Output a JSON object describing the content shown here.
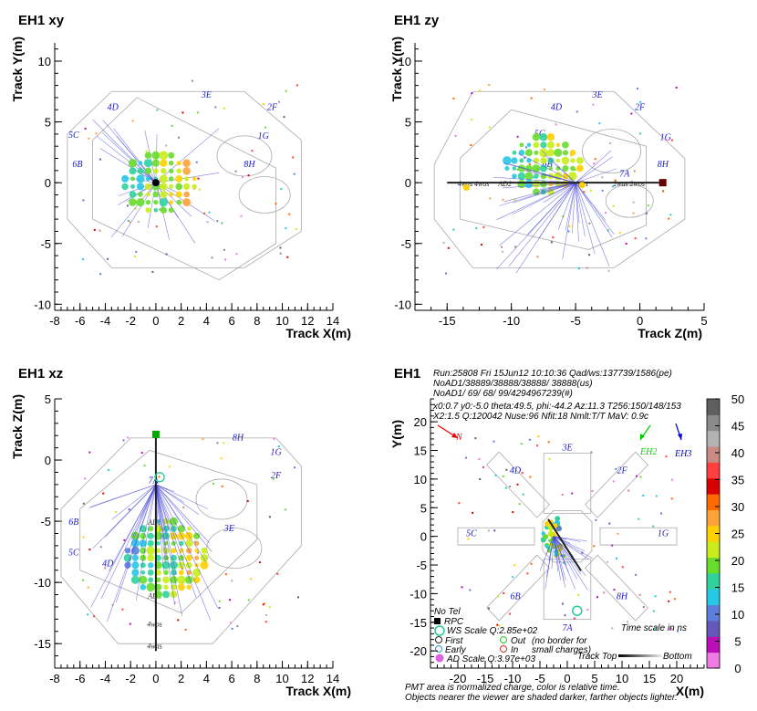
{
  "chart_data": [
    {
      "type": "scatter",
      "panel": "xy",
      "title": "EH1 xy",
      "xlabel": "Track X(m)",
      "ylabel": "Track Y(m)",
      "xlim": [
        -8,
        14
      ],
      "ylim": [
        -10.5,
        11.5
      ],
      "xticks": [
        -8,
        -6,
        -4,
        -2,
        0,
        2,
        4,
        6,
        8,
        10,
        12,
        14
      ],
      "yticks": [
        -10,
        -5,
        0,
        5,
        10
      ],
      "labels": [
        {
          "t": "3E",
          "x": 4,
          "y": 7
        },
        {
          "t": "4D",
          "x": -3.4,
          "y": 6
        },
        {
          "t": "2F",
          "x": 9.2,
          "y": 6
        },
        {
          "t": "5C",
          "x": -6.5,
          "y": 3.7
        },
        {
          "t": "1G",
          "x": 8.5,
          "y": 3.6
        },
        {
          "t": "6B",
          "x": -6.2,
          "y": 1.3
        },
        {
          "t": "8H",
          "x": 7.4,
          "y": 1.3
        }
      ]
    },
    {
      "type": "scatter",
      "panel": "zy",
      "title": "EH1 zy",
      "xlabel": "Track Z(m)",
      "ylabel": "Track Y(m)",
      "xlim": [
        -17.5,
        5
      ],
      "ylim": [
        -10.5,
        11.5
      ],
      "xticks": [
        -15,
        -10,
        -5,
        0,
        5
      ],
      "yticks": [
        -10,
        -5,
        0,
        5,
        10
      ],
      "labels": [
        {
          "t": "3E",
          "x": -3.3,
          "y": 7
        },
        {
          "t": "4D",
          "x": -6.5,
          "y": 6
        },
        {
          "t": "2F",
          "x": 0,
          "y": 6
        },
        {
          "t": "5C",
          "x": -7.8,
          "y": 3.8
        },
        {
          "t": "1G",
          "x": 2,
          "y": 3.5
        },
        {
          "t": "6B",
          "x": -7.2,
          "y": 1.3
        },
        {
          "t": "8H",
          "x": 1.8,
          "y": 1.3
        },
        {
          "t": "7A",
          "x": -1.2,
          "y": 0.5
        },
        {
          "t": "AD2",
          "x": -10.5,
          "y": -0.3
        },
        {
          "t": "AD1",
          "x": -4.5,
          "y": -0.3
        },
        {
          "t": "4was",
          "x": -13.6,
          "y": -0.3
        },
        {
          "t": "4wos",
          "x": -12.3,
          "y": -0.3
        },
        {
          "t": "2was",
          "x": -1.5,
          "y": -0.3
        },
        {
          "t": "2wos",
          "x": -0.2,
          "y": -0.3
        }
      ]
    },
    {
      "type": "scatter",
      "panel": "xz",
      "title": "EH1 xz",
      "xlabel": "Track X(m)",
      "ylabel": "Track Z(m)",
      "xlim": [
        -8,
        14
      ],
      "ylim": [
        -17,
        5
      ],
      "xticks": [
        -8,
        -6,
        -4,
        -2,
        0,
        2,
        4,
        6,
        8,
        10,
        12,
        14
      ],
      "yticks": [
        -15,
        -10,
        -5,
        0,
        5
      ],
      "labels": [
        {
          "t": "8H",
          "x": 6.5,
          "y": 1.6
        },
        {
          "t": "1G",
          "x": 9.5,
          "y": 0.4
        },
        {
          "t": "2F",
          "x": 9.5,
          "y": -1.5
        },
        {
          "t": "6B",
          "x": -6.5,
          "y": -5.3
        },
        {
          "t": "3E",
          "x": 5.8,
          "y": -5.8
        },
        {
          "t": "5C",
          "x": -6.5,
          "y": -7.8
        },
        {
          "t": "4D",
          "x": -3.8,
          "y": -8.7
        },
        {
          "t": "7A",
          "x": -0.2,
          "y": -1.9
        },
        {
          "t": "AD1",
          "x": -0.1,
          "y": -5.3
        },
        {
          "t": "AD2",
          "x": -0.1,
          "y": -11.3
        },
        {
          "t": "4wos",
          "x": -0.1,
          "y": -13.6
        },
        {
          "t": "4was",
          "x": -0.1,
          "y": -15.4
        }
      ]
    },
    {
      "type": "scatter",
      "panel": "unrolled",
      "title": "EH1",
      "xlabel": "X(m)",
      "ylabel": "Y(m)",
      "xlim": [
        -25,
        25
      ],
      "ylim": [
        -23,
        24
      ],
      "xticks": [
        -20,
        -15,
        -10,
        -5,
        0,
        5,
        10,
        15,
        20
      ],
      "yticks": [
        -20,
        -15,
        -10,
        -5,
        0,
        5,
        10,
        15,
        20
      ],
      "labels": [
        {
          "t": "3E",
          "x": 0,
          "y": 15
        },
        {
          "t": "4D",
          "x": -9.5,
          "y": 11
        },
        {
          "t": "2F",
          "x": 10,
          "y": 11
        },
        {
          "t": "5C",
          "x": -17.5,
          "y": 0
        },
        {
          "t": "1G",
          "x": 17.5,
          "y": 0
        },
        {
          "t": "6B",
          "x": -9.5,
          "y": -11
        },
        {
          "t": "8H",
          "x": 10,
          "y": -11
        },
        {
          "t": "7A",
          "x": 0,
          "y": -16.5
        }
      ],
      "colorbar": {
        "min": 0,
        "max": 50,
        "ticks": [
          0,
          5,
          10,
          15,
          20,
          25,
          30,
          35,
          40,
          45,
          50
        ],
        "label": "Time scale in ns"
      }
    }
  ],
  "info": {
    "line1": "Run:25808 Fri 15Jun12 10:10:36 Qad/ws:137739/1586(pe)",
    "line2": "NoAD1/38889/38888/38888/              38888(us)",
    "line3": "NoAD1/       69/        68/        99/4294967239(#)",
    "line4": "x0:0.7 y0:-5.0 theta:49.5, phi:-44.2 Az:11.3 T256:150/148/153",
    "line5": "X2:1.5 Q:120042 Nuse:96 Nfit:18 Nmlt:T/T MaV: 0.9c"
  },
  "compass": {
    "n": "N",
    "eh2": "EH2",
    "eh3": "EH3"
  },
  "legend": {
    "notel": "No Tel",
    "rpc": "RPC",
    "ws": "WS Scale Q:2.85e+02",
    "first": "First",
    "out": "Out",
    "noborder": "(no border for",
    "early": "Early",
    "in": "In",
    "small": "small charges)",
    "ad": "AD Scale Q:3.97e+03",
    "timescale": "Time scale in ns",
    "tracktop": "Track Top",
    "bottom": "Bottom"
  },
  "footer": {
    "l1": "PMT area is normalized charge, color is relative time.",
    "l2": "Objects nearer the viewer are shaded darker, farther objects lighter."
  },
  "colors": {
    "palette": [
      "#f07be5",
      "#b90fb4",
      "#6457b8",
      "#5c7fdd",
      "#27c7e6",
      "#2fd29c",
      "#68dc2b",
      "#c9ec1a",
      "#ffd000",
      "#ffa23a",
      "#ff6a00",
      "#d90000",
      "#ff3f3f",
      "#c88a82",
      "#b3b3b3",
      "#8a8a8a",
      "#5f5f5f"
    ],
    "label": "#1a1acc"
  }
}
